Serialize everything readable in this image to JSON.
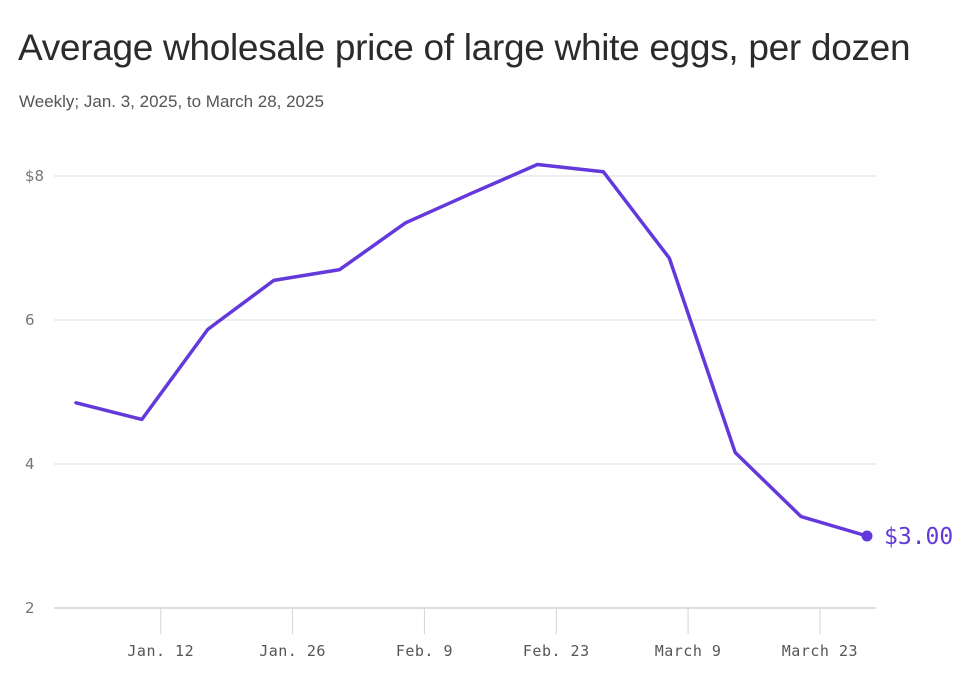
{
  "chart_data": {
    "type": "line",
    "title": "Average wholesale price of large white eggs, per dozen",
    "subtitle": "Weekly; Jan. 3, 2025, to March 28, 2025",
    "xlabel": "",
    "ylabel": "",
    "ylim": [
      2,
      8
    ],
    "y_ticks": [
      2,
      4,
      6,
      8
    ],
    "y_tick_labels": [
      "2",
      "4",
      "6",
      "$8"
    ],
    "x_ticks": [
      {
        "day": 11,
        "label": "Jan. 12"
      },
      {
        "day": 25,
        "label": "Jan. 26"
      },
      {
        "day": 39,
        "label": "Feb. 9"
      },
      {
        "day": 53,
        "label": "Feb. 23"
      },
      {
        "day": 67,
        "label": "March 9"
      },
      {
        "day": 81,
        "label": "March 23"
      }
    ],
    "x_unit": "days since Jan. 1, 2025",
    "series": [
      {
        "name": "Average wholesale price",
        "color": "#6439dc",
        "x": [
          2,
          9,
          16,
          23,
          30,
          37,
          44,
          51,
          58,
          65,
          72,
          79,
          86
        ],
        "values": [
          4.85,
          4.62,
          5.87,
          6.55,
          6.7,
          7.35,
          7.76,
          8.16,
          8.06,
          6.86,
          4.16,
          3.27,
          3.0
        ]
      }
    ],
    "end_label": "$3.00",
    "grid": true
  }
}
